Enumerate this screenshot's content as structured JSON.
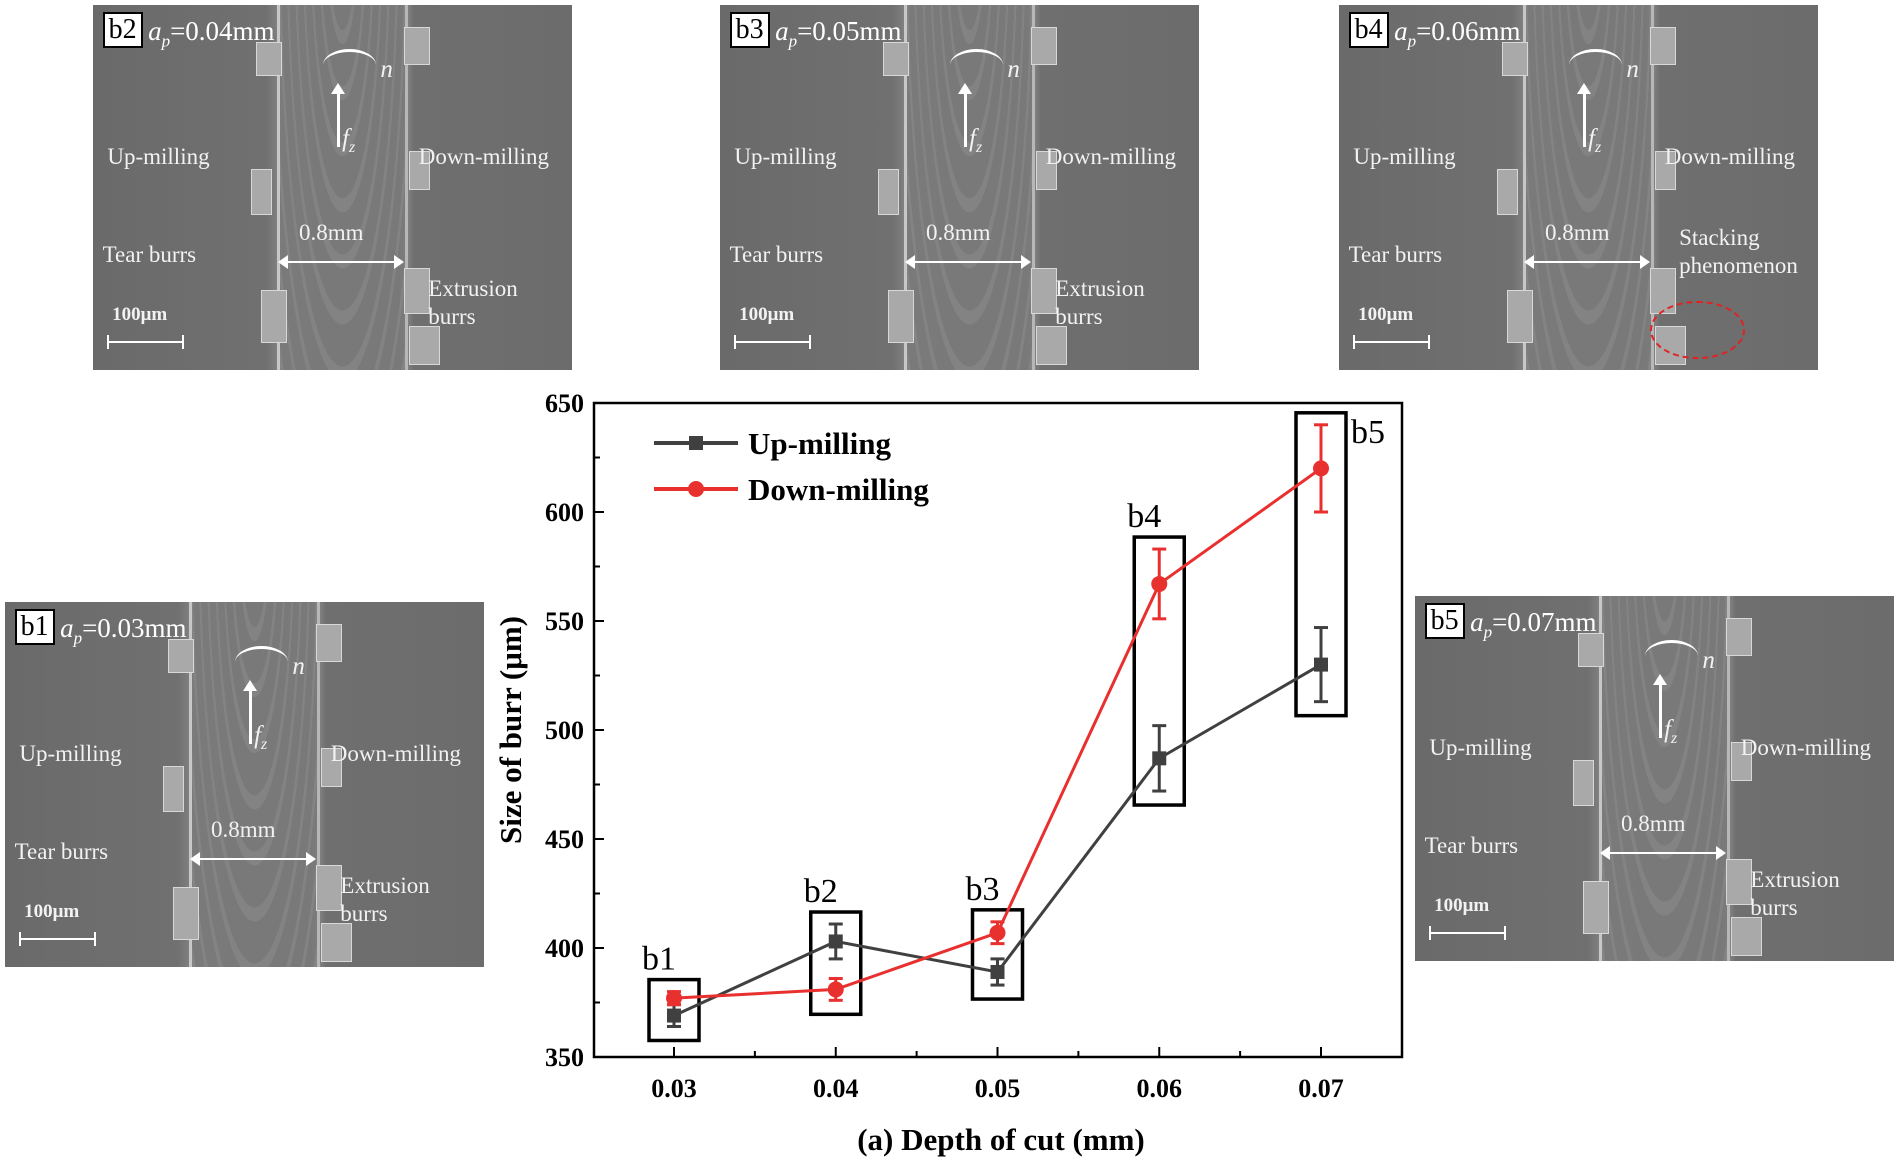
{
  "panels": [
    {
      "id": "b2",
      "ap_value": "=0.04mm",
      "up": "Up-milling",
      "down": "Down-milling",
      "tear": "Tear burrs",
      "width": "0.8mm",
      "extrusion": [
        "Extrusion",
        "burrs"
      ],
      "scale": "100μm",
      "n": "n",
      "fz": "f",
      "fz_sub": "z"
    },
    {
      "id": "b3",
      "ap_value": "=0.05mm",
      "up": "Up-milling",
      "down": "Down-milling",
      "tear": "Tear burrs",
      "width": "0.8mm",
      "extrusion": [
        "Extrusion",
        "burrs"
      ],
      "scale": "100μm",
      "n": "n",
      "fz": "f",
      "fz_sub": "z"
    },
    {
      "id": "b4",
      "ap_value": "=0.06mm",
      "up": "Up-milling",
      "down": "Down-milling",
      "tear": "Tear burrs",
      "width": "0.8mm",
      "stacking": [
        "Stacking",
        "phenomenon"
      ],
      "scale": "100μm",
      "n": "n",
      "fz": "f",
      "fz_sub": "z",
      "highlight_color": "#e22222"
    },
    {
      "id": "b1",
      "ap_value": "=0.03mm",
      "up": "Up-milling",
      "down": "Down-milling",
      "tear": "Tear burrs",
      "width": "0.8mm",
      "extrusion": [
        "Extrusion",
        "burrs"
      ],
      "scale": "100μm",
      "n": "n",
      "fz": "f",
      "fz_sub": "z"
    },
    {
      "id": "b5",
      "ap_value": "=0.07mm",
      "up": "Up-milling",
      "down": "Down-milling",
      "tear": "Tear burrs",
      "width": "0.8mm",
      "extrusion": [
        "Extrusion",
        "burrs"
      ],
      "scale": "100μm",
      "n": "n",
      "fz": "f",
      "fz_sub": "z"
    }
  ],
  "ap_symbol": "a",
  "ap_sub": "p",
  "chart_data": {
    "type": "line",
    "xlabel": "(a) Depth of cut (mm)",
    "ylabel": "Size of burr (μm)",
    "x": [
      0.03,
      0.04,
      0.05,
      0.06,
      0.07
    ],
    "xticks": [
      "0.03",
      "0.04",
      "0.05",
      "0.06",
      "0.07"
    ],
    "yticks": [
      350,
      400,
      450,
      500,
      550,
      600,
      650
    ],
    "ylim": [
      350,
      650
    ],
    "grid": false,
    "legend": "top-left",
    "series": [
      {
        "name": "Up-milling",
        "color": "#404040",
        "marker": "square",
        "values": [
          369,
          403,
          389,
          487,
          530
        ],
        "errors": [
          5,
          8,
          6,
          15,
          17
        ]
      },
      {
        "name": "Down-milling",
        "color": "#e8302f",
        "marker": "circle",
        "values": [
          377,
          381,
          407,
          567,
          620
        ],
        "errors": [
          3,
          5,
          5,
          16,
          20
        ]
      }
    ],
    "annotations": [
      "b1",
      "b2",
      "b3",
      "b4",
      "b5"
    ]
  }
}
